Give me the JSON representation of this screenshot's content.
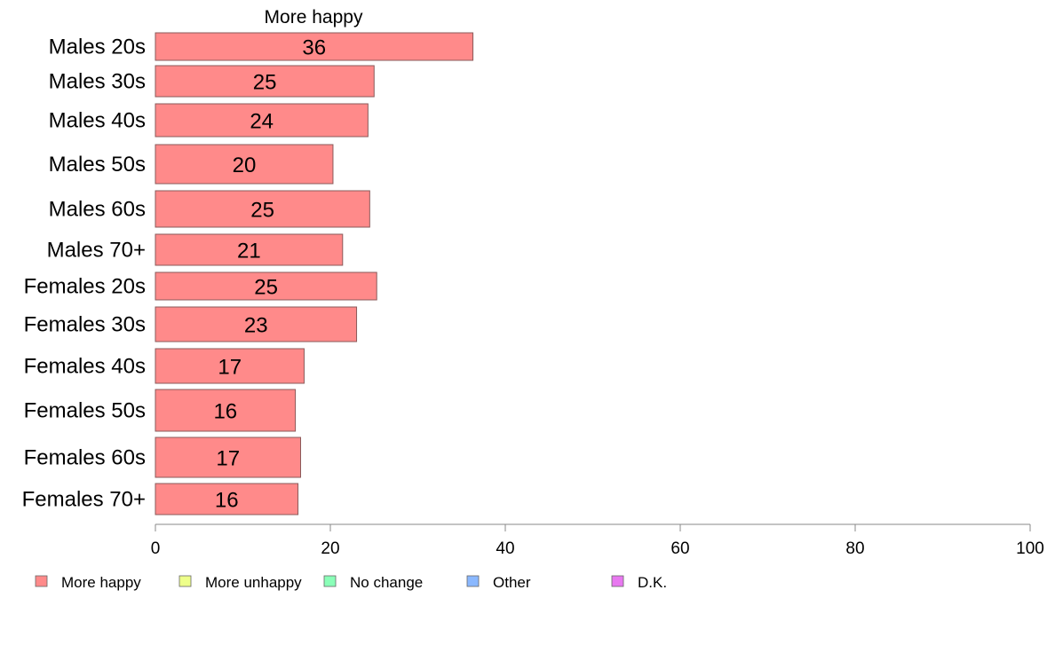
{
  "chart_data": {
    "type": "bar",
    "orientation": "horizontal",
    "title": "More happy",
    "categories": [
      "Males 20s",
      "Males 30s",
      "Males 40s",
      "Males 50s",
      "Males 60s",
      "Males 70+",
      "Females 20s",
      "Females 30s",
      "Females 40s",
      "Females 50s",
      "Females 60s",
      "Females 70+"
    ],
    "series": [
      {
        "name": "More happy",
        "values": [
          36.3,
          25.0,
          24.3,
          20.3,
          24.5,
          21.4,
          25.3,
          23.0,
          17.0,
          16.0,
          16.6,
          16.3
        ],
        "labels": [
          "36",
          "25",
          "24",
          "20",
          "25",
          "21",
          "25",
          "23",
          "17",
          "16",
          "17",
          "16"
        ]
      }
    ],
    "xlim": [
      0,
      100
    ],
    "xticks": [
      "0",
      "20",
      "40",
      "60",
      "80",
      "100"
    ],
    "grid": false,
    "legend": {
      "placement": "bottom",
      "items": [
        {
          "label": "More happy",
          "color": "#ff8a8a"
        },
        {
          "label": "More unhappy",
          "color": "#eeff8a"
        },
        {
          "label": "No change",
          "color": "#8affb8"
        },
        {
          "label": "Other",
          "color": "#8ab8ff"
        },
        {
          "label": "D.K.",
          "color": "#e878f0"
        }
      ]
    },
    "colors": {
      "bar": "#ff8a8a",
      "bar_stroke": "#8a5a5a",
      "axis": "#888888"
    }
  }
}
